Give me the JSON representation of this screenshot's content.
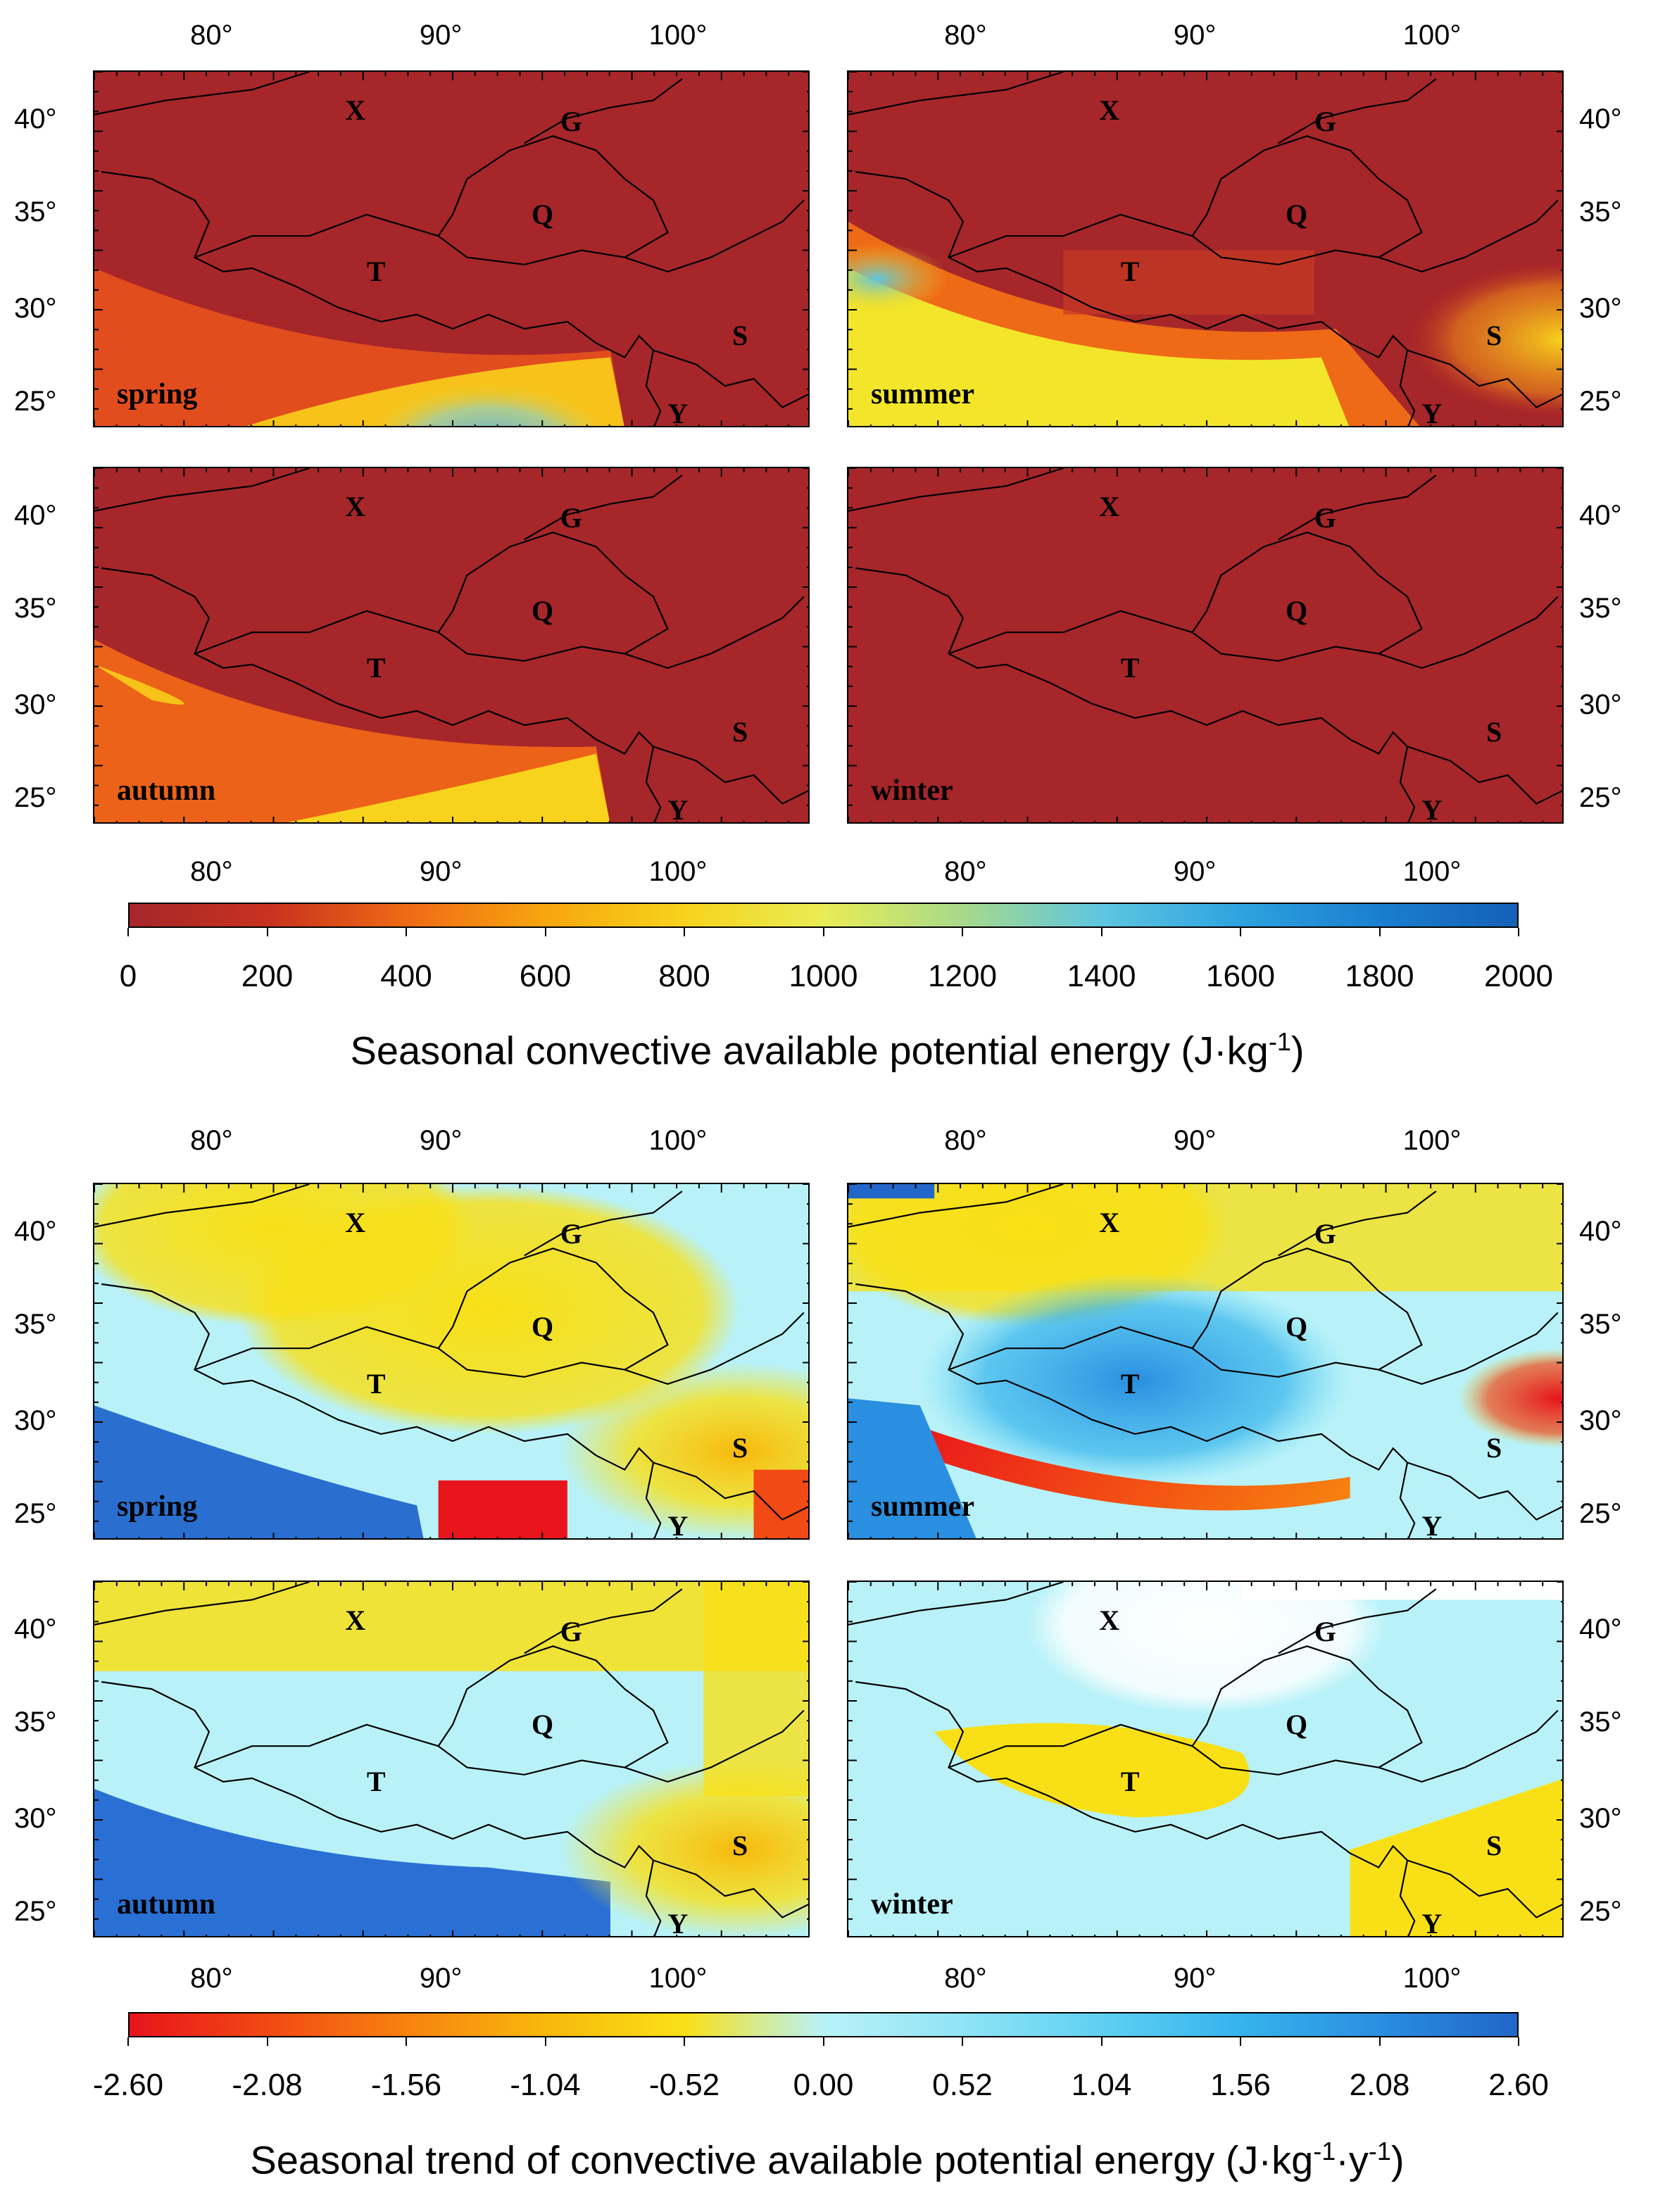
{
  "figure": {
    "top_block": {
      "panels": [
        {
          "season": "spring",
          "style": "cape-spring"
        },
        {
          "season": "summer",
          "style": "cape-summer"
        },
        {
          "season": "autumn",
          "style": "cape-autumn"
        },
        {
          "season": "winter",
          "style": "cape-winter"
        }
      ],
      "colorbar": {
        "ticks": [
          "0",
          "200",
          "400",
          "600",
          "800",
          "1000",
          "1200",
          "1400",
          "1600",
          "1800",
          "2000"
        ],
        "colors": [
          "#a6262a",
          "#c8321e",
          "#ef6a16",
          "#f7a60e",
          "#f7d31c",
          "#e9ec55",
          "#a8d98a",
          "#5ec6e0",
          "#2ea3df",
          "#1a7fd0",
          "#1560b8"
        ],
        "title": "Seasonal convective available potential energy (J·kg",
        "title_sup": "-1",
        "title_end": ")"
      }
    },
    "bottom_block": {
      "panels": [
        {
          "season": "spring",
          "style": "trend-spring"
        },
        {
          "season": "summer",
          "style": "trend-summer"
        },
        {
          "season": "autumn",
          "style": "trend-autumn"
        },
        {
          "season": "winter",
          "style": "trend-winter"
        }
      ],
      "colorbar": {
        "ticks": [
          "-2.60",
          "-2.08",
          "-1.56",
          "-1.04",
          "-0.52",
          "0.00",
          "0.52",
          "1.04",
          "1.56",
          "2.08",
          "2.60"
        ],
        "colors": [
          "#e8141c",
          "#f24a14",
          "#f7820f",
          "#f8b80c",
          "#f9e016",
          "#b8f2f8",
          "#8fe4f5",
          "#5fd0f2",
          "#35b3ec",
          "#2a8fe0",
          "#2166c8"
        ],
        "title": "Seasonal trend of convective available potential energy (J·kg",
        "title_sup1": "-1",
        "title_mid": "·y",
        "title_sup2": "-1",
        "title_end": ")"
      }
    },
    "lon_labels": [
      "80°",
      "90°",
      "100°"
    ],
    "lat_labels": [
      "40°",
      "35°",
      "30°",
      "25°"
    ],
    "region_labels": {
      "X": "X",
      "G": "G",
      "Q": "Q",
      "T": "T",
      "S": "S",
      "Y": "Y"
    }
  }
}
